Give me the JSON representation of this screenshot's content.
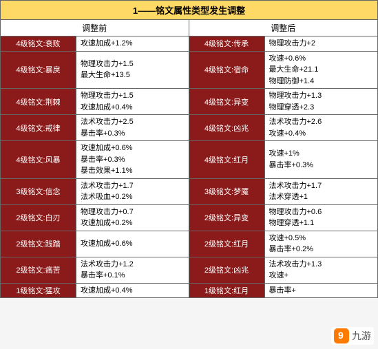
{
  "title": "1——铭文属性类型发生调整",
  "headers": {
    "before": "调整前",
    "after": "调整后"
  },
  "colors": {
    "title_bg": "#ffd966",
    "name_bg": "#8b1a1a",
    "name_fg": "#ffffff",
    "stats_bg": "#ffffff",
    "border": "#666666"
  },
  "rows": [
    {
      "before_name": "4级铭文:衰败",
      "before_stats": [
        "攻速加成+1.2%"
      ],
      "after_name": "4级铭文:传承",
      "after_stats": [
        "物理攻击力+2"
      ]
    },
    {
      "before_name": "4级铭文:暴戾",
      "before_stats": [
        "物理攻击力+1.5",
        "最大生命+13.5"
      ],
      "after_name": "4级铭文:宿命",
      "after_stats": [
        "攻速+0.6%",
        "最大生命+21.1",
        "物理防御+1.4"
      ]
    },
    {
      "before_name": "4级铭文:荆棘",
      "before_stats": [
        "物理攻击力+1.5",
        "攻速加成+0.4%"
      ],
      "after_name": "4级铭文:异变",
      "after_stats": [
        "物理攻击力+1.3",
        "物理穿透+2.3"
      ]
    },
    {
      "before_name": "4级铭文:戒律",
      "before_stats": [
        "法术攻击力+2.5",
        "暴击率+0.3%"
      ],
      "after_name": "4级铭文:凶兆",
      "after_stats": [
        "法术攻击力+2.6",
        "攻速+0.4%"
      ]
    },
    {
      "before_name": "4级铭文:风暴",
      "before_stats": [
        "攻速加成+0.6%",
        "暴击率+0.3%",
        "暴击效果+1.1%"
      ],
      "after_name": "4级铭文:红月",
      "after_stats": [
        "攻速+1%",
        "暴击率+0.3%"
      ]
    },
    {
      "before_name": "3级铭文:信念",
      "before_stats": [
        "法术攻击力+1.7",
        "法术吸血+0.2%"
      ],
      "after_name": "3级铭文:梦魇",
      "after_stats": [
        "法术攻击力+1.7",
        "法术穿透+1"
      ]
    },
    {
      "before_name": "2级铭文:白刃",
      "before_stats": [
        "物理攻击力+0.7",
        "攻速加成+0.2%"
      ],
      "after_name": "2级铭文:异变",
      "after_stats": [
        "物理攻击力+0.6",
        "物理穿透+1.1"
      ]
    },
    {
      "before_name": "2级铭文:践踏",
      "before_stats": [
        "攻速加成+0.6%"
      ],
      "after_name": "2级铭文:红月",
      "after_stats": [
        "攻速+0.5%",
        "暴击率+0.2%"
      ]
    },
    {
      "before_name": "2级铭文:痛苦",
      "before_stats": [
        "法术攻击力+1.2",
        "暴击率+0.1%"
      ],
      "after_name": "2级铭文:凶兆",
      "after_stats": [
        "法术攻击力+1.3",
        "攻速+"
      ]
    },
    {
      "before_name": "1级铭文:猛攻",
      "before_stats": [
        "攻速加成+0.4%"
      ],
      "after_name": "1级铭文:红月",
      "after_stats": [
        "暴击率+"
      ]
    }
  ],
  "watermark": {
    "text": "九游"
  }
}
